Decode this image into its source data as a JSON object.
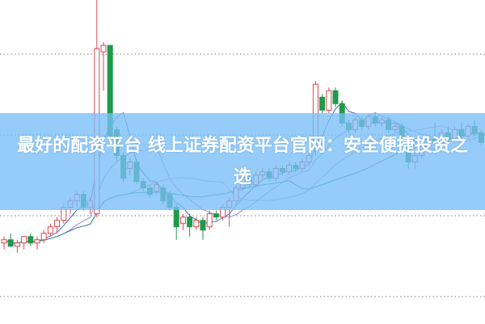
{
  "banner": {
    "title": "最好的配资平台 线上证券配资平台官网：安全便捷投资之选",
    "background": "#8ec9f5"
  },
  "chart_data": {
    "type": "candlestick",
    "title": "",
    "grid": "horizontal dotted",
    "colors": {
      "up": "#d9474f",
      "down": "#1f9a4a",
      "grid": "#999999"
    },
    "moving_averages": [
      {
        "period": 5,
        "color": "#4a6fb5"
      },
      {
        "period": 10,
        "color": "#9b8fd6"
      },
      {
        "period": 20,
        "color": "#c59ad4"
      },
      {
        "period": 30,
        "color": "#2a8a8a"
      }
    ],
    "ylim": [
      0,
      100
    ],
    "candles": [
      [
        25,
        27,
        23,
        26
      ],
      [
        26,
        28,
        24,
        24
      ],
      [
        24,
        26,
        22,
        25
      ],
      [
        25,
        27,
        23,
        27
      ],
      [
        27,
        28,
        24,
        25
      ],
      [
        25,
        27,
        23,
        26
      ],
      [
        26,
        29,
        25,
        28
      ],
      [
        28,
        31,
        27,
        30
      ],
      [
        30,
        33,
        28,
        32
      ],
      [
        32,
        37,
        31,
        36
      ],
      [
        36,
        39,
        34,
        38
      ],
      [
        38,
        41,
        36,
        40
      ],
      [
        40,
        41,
        35,
        36
      ],
      [
        36,
        39,
        34,
        38
      ],
      [
        34,
        100,
        33,
        85
      ],
      [
        84,
        87,
        72,
        86
      ],
      [
        86,
        86,
        57,
        58
      ],
      [
        60,
        61,
        50,
        52
      ],
      [
        52,
        53,
        44,
        45
      ],
      [
        48,
        51,
        46,
        50
      ],
      [
        50,
        51,
        43,
        44
      ],
      [
        44,
        45,
        41,
        42
      ],
      [
        42,
        43,
        39,
        40
      ],
      [
        41,
        44,
        40,
        43
      ],
      [
        42,
        43,
        37,
        38
      ],
      [
        40,
        41,
        35,
        36
      ],
      [
        36,
        37,
        26,
        30
      ],
      [
        31,
        34,
        29,
        33
      ],
      [
        33,
        34,
        27,
        30
      ],
      [
        30,
        33,
        29,
        32
      ],
      [
        32,
        33,
        26,
        29
      ],
      [
        30,
        35,
        29,
        34
      ],
      [
        34,
        35,
        32,
        33
      ],
      [
        33,
        37,
        32,
        36
      ],
      [
        36,
        39,
        30,
        38
      ],
      [
        38,
        43,
        37,
        42
      ],
      [
        42,
        46,
        41,
        45
      ],
      [
        45,
        46,
        42,
        43
      ],
      [
        43,
        47,
        42,
        46
      ],
      [
        46,
        48,
        45,
        47
      ],
      [
        47,
        48,
        44,
        45
      ],
      [
        45,
        49,
        44,
        48
      ],
      [
        48,
        49,
        46,
        47
      ],
      [
        47,
        50,
        46,
        49
      ],
      [
        49,
        50,
        47,
        48
      ],
      [
        48,
        51,
        47,
        50
      ],
      [
        50,
        53,
        49,
        52
      ],
      [
        55,
        75,
        52,
        74
      ],
      [
        70,
        71,
        65,
        66
      ],
      [
        66,
        73,
        65,
        72
      ],
      [
        72,
        73,
        67,
        68
      ],
      [
        68,
        69,
        61,
        62
      ],
      [
        62,
        63,
        59,
        60
      ],
      [
        60,
        64,
        59,
        63
      ],
      [
        63,
        64,
        60,
        61
      ],
      [
        61,
        65,
        60,
        64
      ],
      [
        64,
        65,
        61,
        62
      ],
      [
        62,
        64,
        61,
        63
      ],
      [
        63,
        64,
        59,
        60
      ],
      [
        60,
        62,
        59,
        61
      ],
      [
        61,
        62,
        57,
        58
      ],
      [
        57,
        58,
        48,
        50
      ],
      [
        50,
        53,
        48,
        52
      ],
      [
        52,
        56,
        51,
        55
      ],
      [
        55,
        58,
        54,
        57
      ],
      [
        57,
        62,
        55,
        56
      ],
      [
        56,
        60,
        55,
        59
      ],
      [
        59,
        61,
        56,
        57
      ],
      [
        57,
        61,
        56,
        60
      ],
      [
        60,
        62,
        57,
        58
      ],
      [
        58,
        62,
        57,
        61
      ],
      [
        61,
        63,
        58,
        59
      ],
      [
        59,
        60,
        55,
        56
      ]
    ]
  }
}
